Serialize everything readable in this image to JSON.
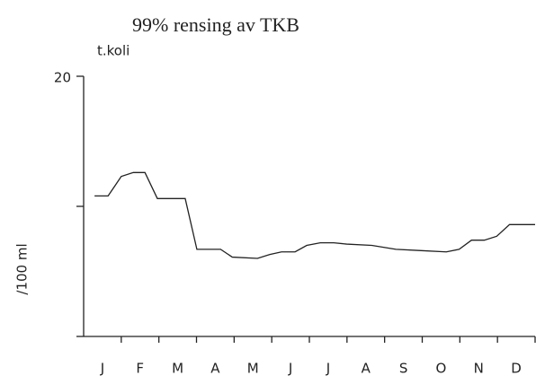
{
  "chart_data": {
    "type": "line",
    "title": "99% rensing av TKB",
    "unit_label": "t.koli",
    "ylabel": "/100 ml",
    "categories": [
      "J",
      "F",
      "M",
      "A",
      "M",
      "J",
      "J",
      "A",
      "S",
      "O",
      "N",
      "D"
    ],
    "xlim": [
      0,
      12
    ],
    "x": [
      0.29,
      0.65,
      1.0,
      1.32,
      1.63,
      1.96,
      2.7,
      3.01,
      3.64,
      3.95,
      4.62,
      4.95,
      5.26,
      5.62,
      5.93,
      6.29,
      6.65,
      6.99,
      7.66,
      8.3,
      8.97,
      9.64,
      9.98,
      10.31,
      10.65,
      10.98,
      11.32,
      12.0
    ],
    "values": [
      10.8,
      10.8,
      12.3,
      12.6,
      12.6,
      10.6,
      10.6,
      6.7,
      6.7,
      6.1,
      6.0,
      6.3,
      6.5,
      6.5,
      7.0,
      7.2,
      7.2,
      7.1,
      7.0,
      6.7,
      6.6,
      6.5,
      6.7,
      7.4,
      7.4,
      7.7,
      8.6,
      8.6
    ],
    "color": "#222222",
    "ylim": [
      0,
      20
    ],
    "yticks": [
      {
        "value": 0,
        "label": null
      },
      {
        "value": 10,
        "label": null
      },
      20
    ]
  }
}
